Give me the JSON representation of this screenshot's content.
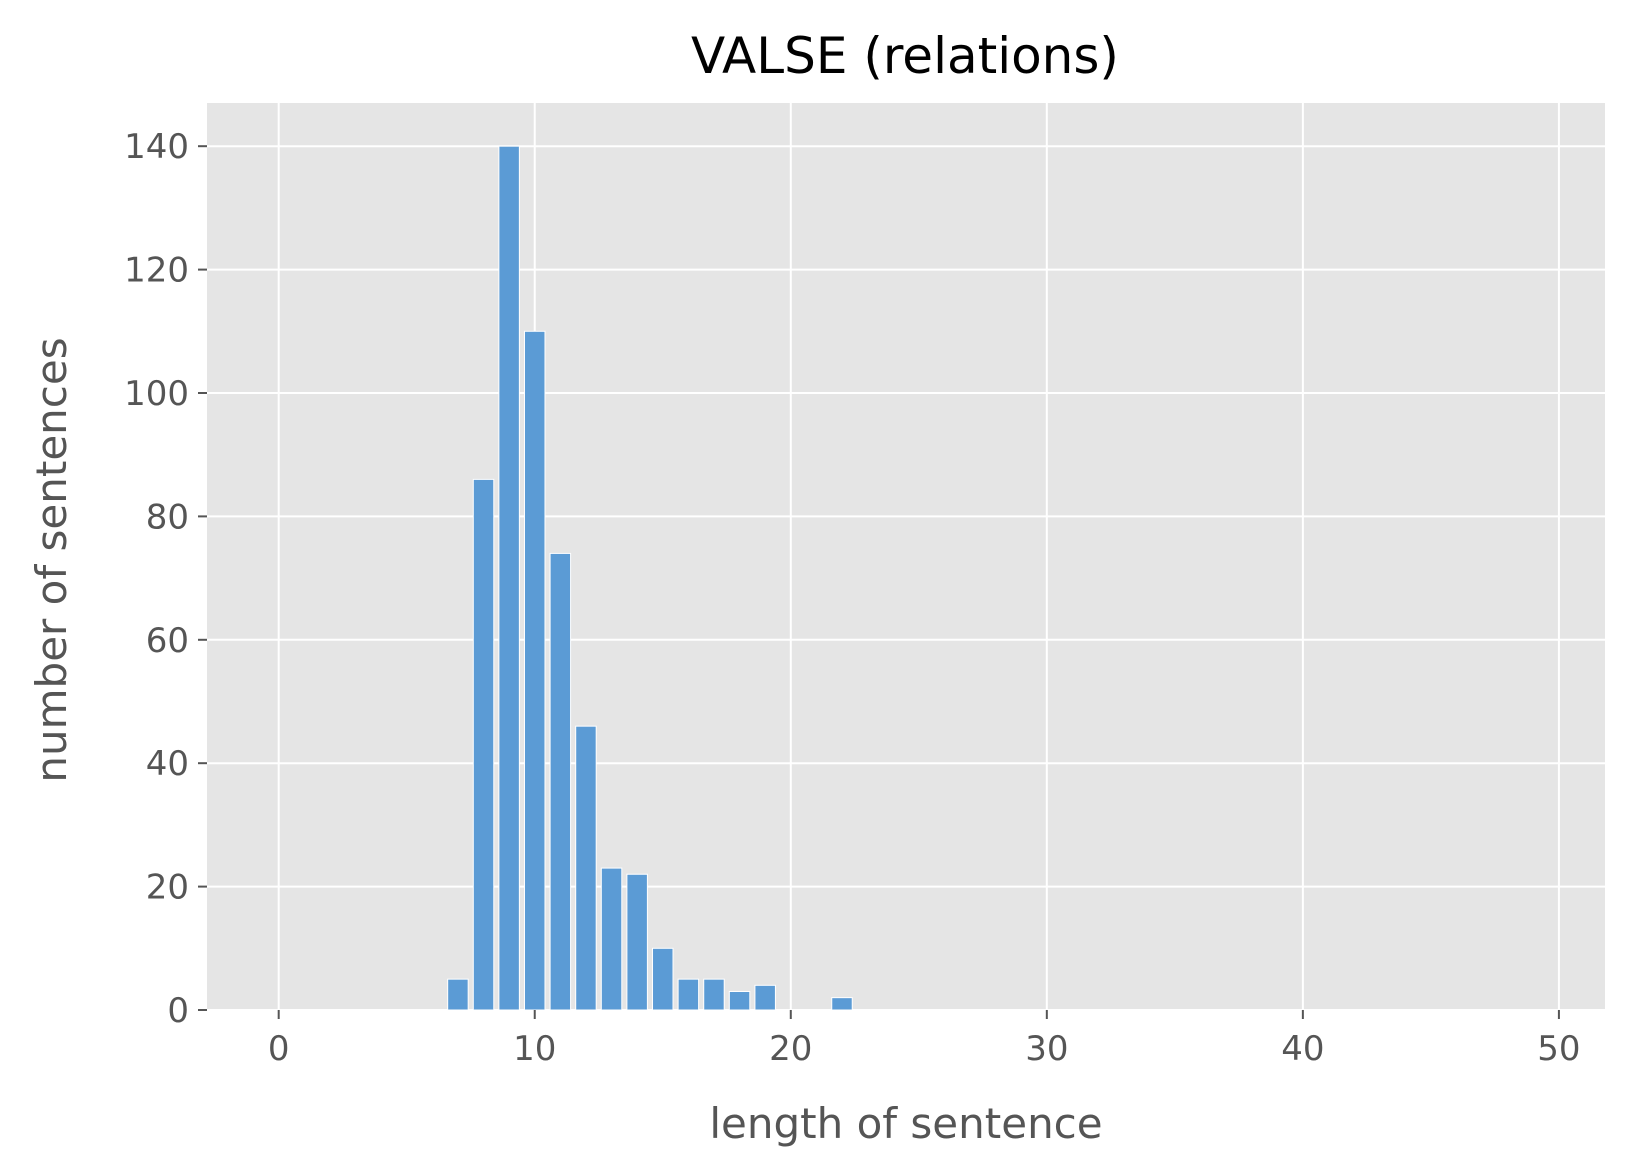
{
  "chart_data": {
    "type": "bar",
    "title": "VALSE (relations)",
    "xlabel": "length of sentence",
    "ylabel": "number of sentences",
    "xlim": [
      -2.8,
      51.8
    ],
    "ylim": [
      0,
      147
    ],
    "xticks": [
      0,
      10,
      20,
      30,
      40,
      50
    ],
    "yticks": [
      0,
      20,
      40,
      60,
      80,
      100,
      120,
      140
    ],
    "grid": true,
    "bar_width": 0.8,
    "colors": {
      "bar": "#5b9bd5",
      "plot_background": "#e5e5e5",
      "grid": "#ffffff",
      "tick": "#555555"
    },
    "x": [
      7,
      8,
      9,
      10,
      11,
      12,
      13,
      14,
      15,
      16,
      17,
      18,
      19,
      22
    ],
    "values": [
      5,
      86,
      140,
      110,
      74,
      46,
      23,
      22,
      10,
      5,
      5,
      3,
      4,
      2
    ]
  }
}
